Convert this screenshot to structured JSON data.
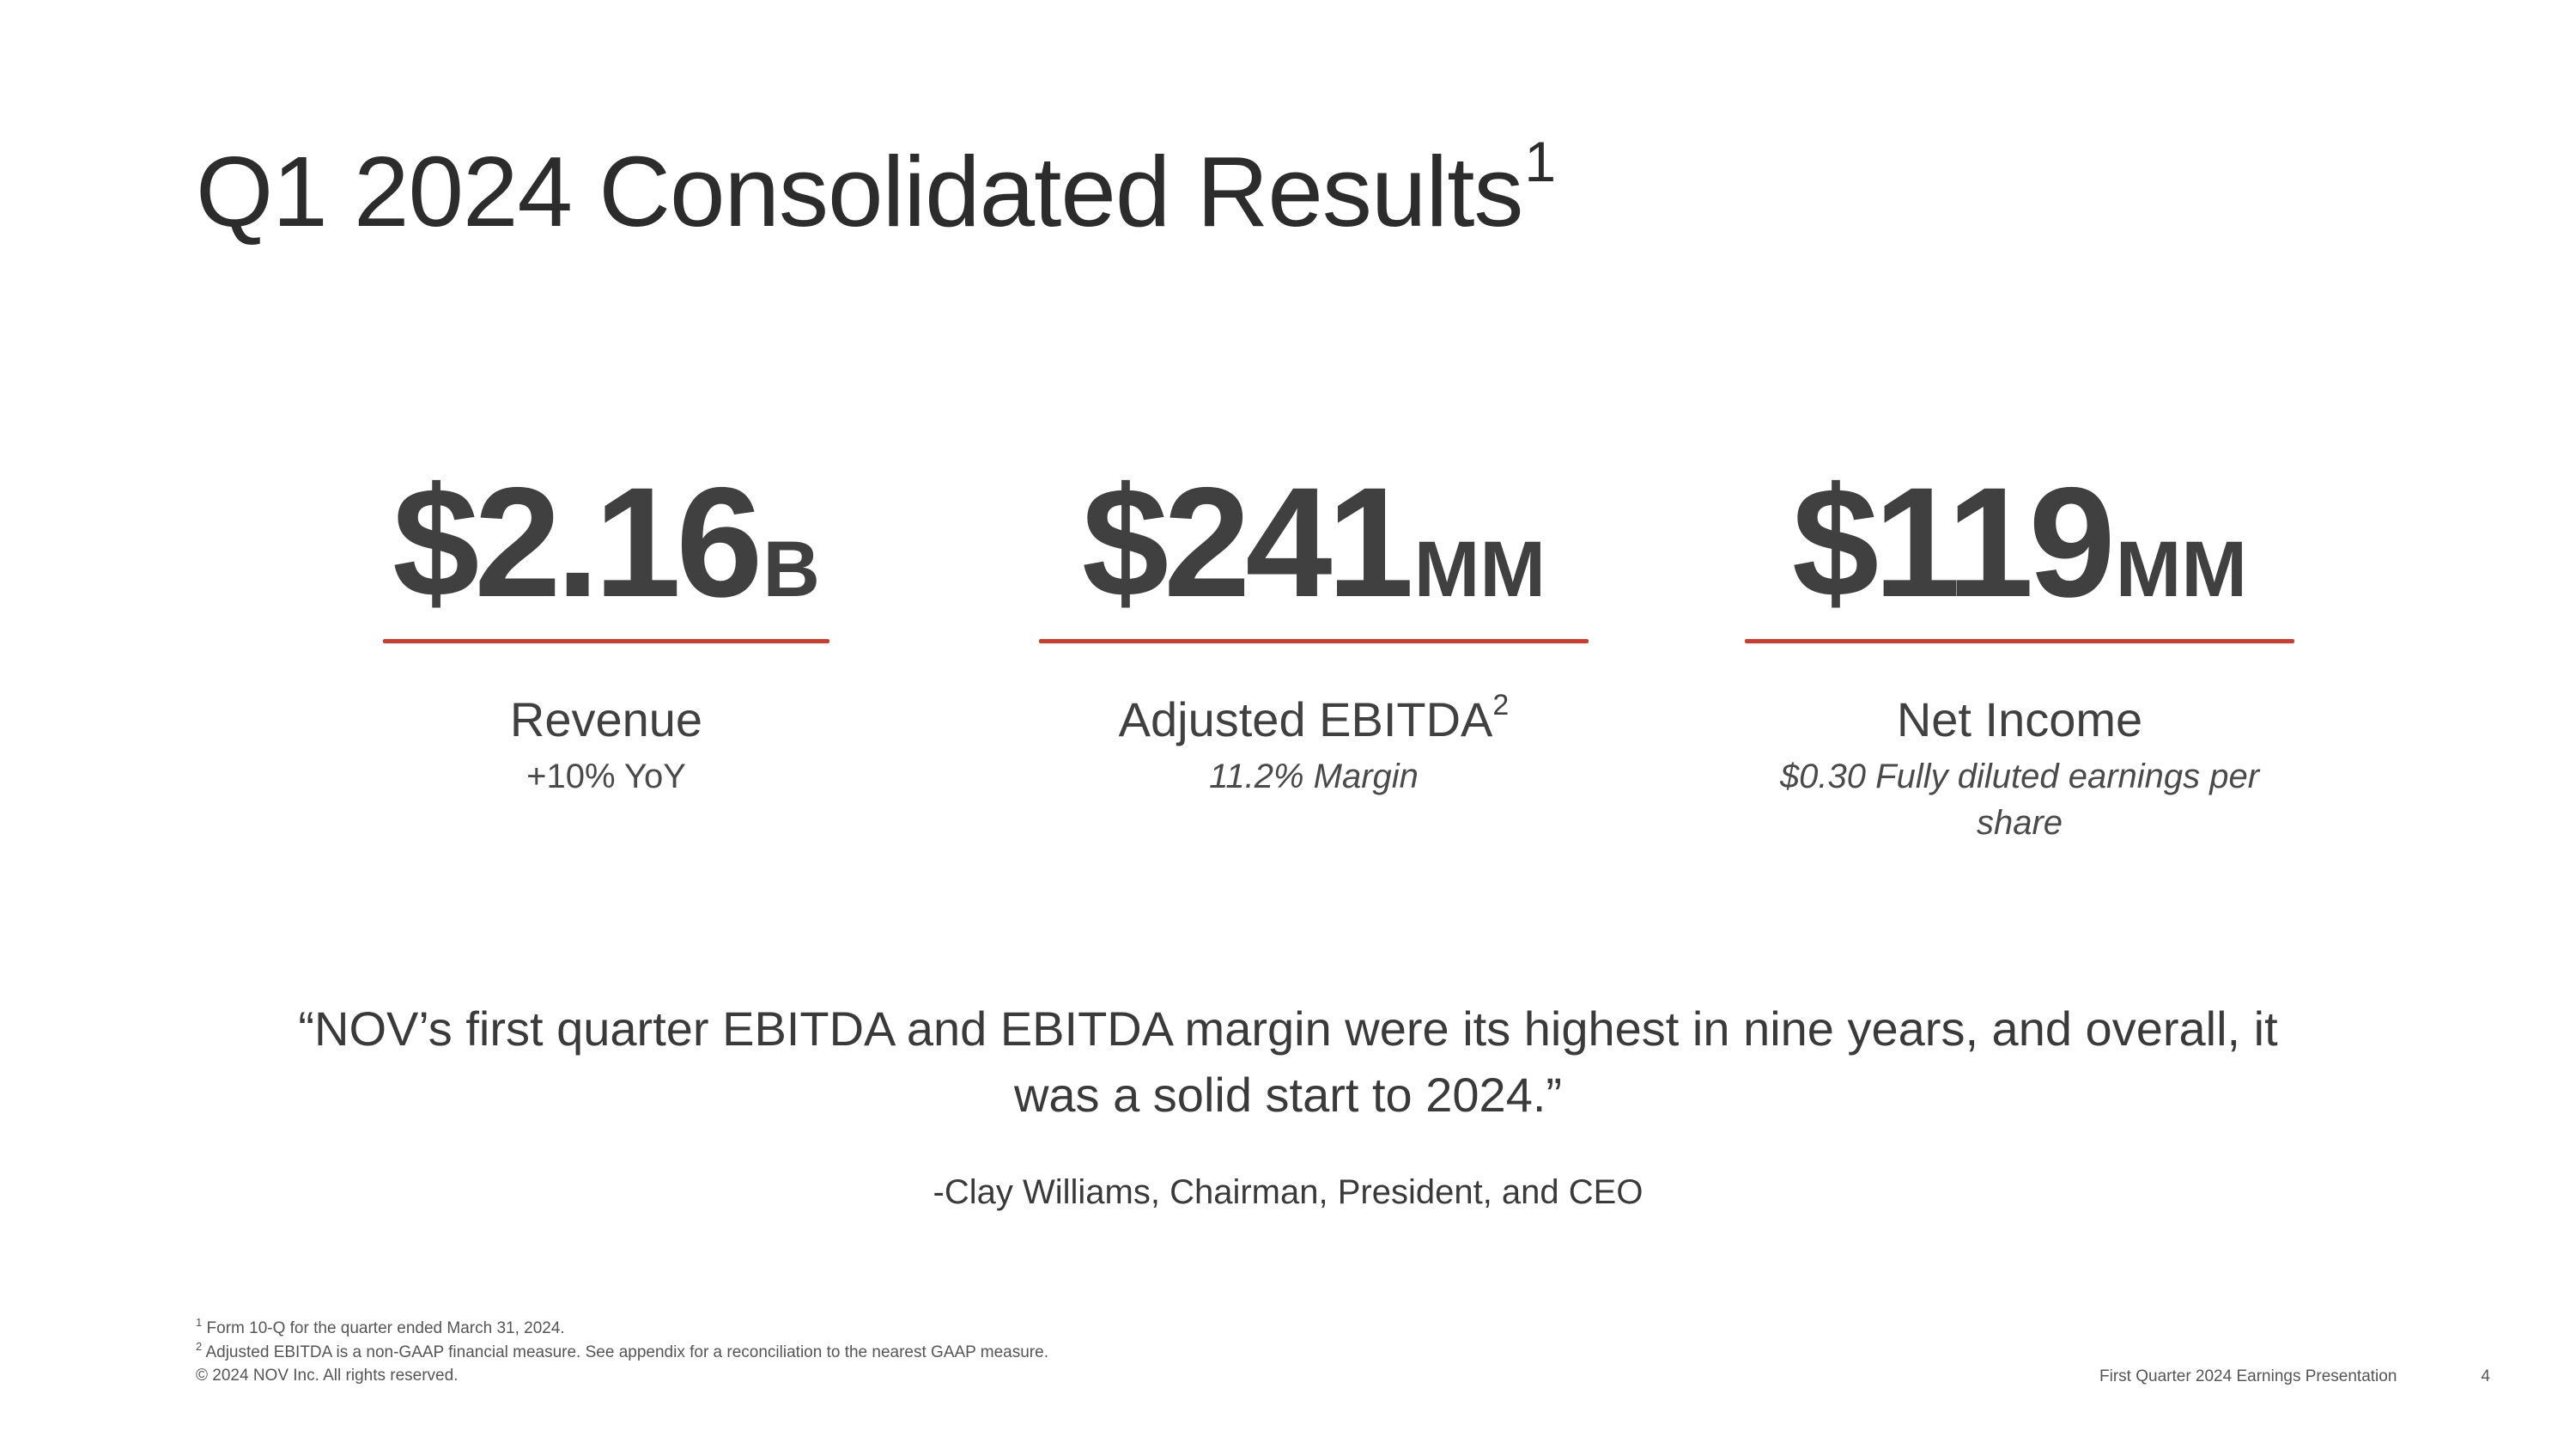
{
  "slide": {
    "title": "Q1 2024 Consolidated Results",
    "title_footnote": "1"
  },
  "metrics": [
    {
      "number": "$2.16",
      "unit": "B",
      "label": "Revenue",
      "label_footnote": "",
      "sub": "+10% YoY"
    },
    {
      "number": "$241",
      "unit": "MM",
      "label": "Adjusted EBITDA",
      "label_footnote": "2",
      "sub": "11.2% Margin"
    },
    {
      "number": "$119",
      "unit": "MM",
      "label": "Net Income",
      "label_footnote": "",
      "sub": "$0.30 Fully diluted earnings per share"
    }
  ],
  "quote": {
    "text": "“NOV’s first quarter EBITDA and EBITDA margin were its highest in nine years, and overall, it was a solid start to 2024.”",
    "attribution": "-Clay Williams, Chairman, President, and CEO"
  },
  "footnotes": {
    "note1_marker": "1",
    "note1_text": "Form 10-Q for the quarter ended March 31, 2024.",
    "note2_marker": "2",
    "note2_text": "Adjusted EBITDA is a non-GAAP financial measure. See appendix for a reconciliation to the nearest GAAP measure.",
    "copyright": "© 2024 NOV Inc. All rights reserved."
  },
  "footer": {
    "presentation_name": "First Quarter 2024 Earnings Presentation",
    "page_number": "4"
  },
  "colors": {
    "accent_rule": "#d13b2e",
    "value_text": "#404040",
    "background": "#ffffff"
  }
}
